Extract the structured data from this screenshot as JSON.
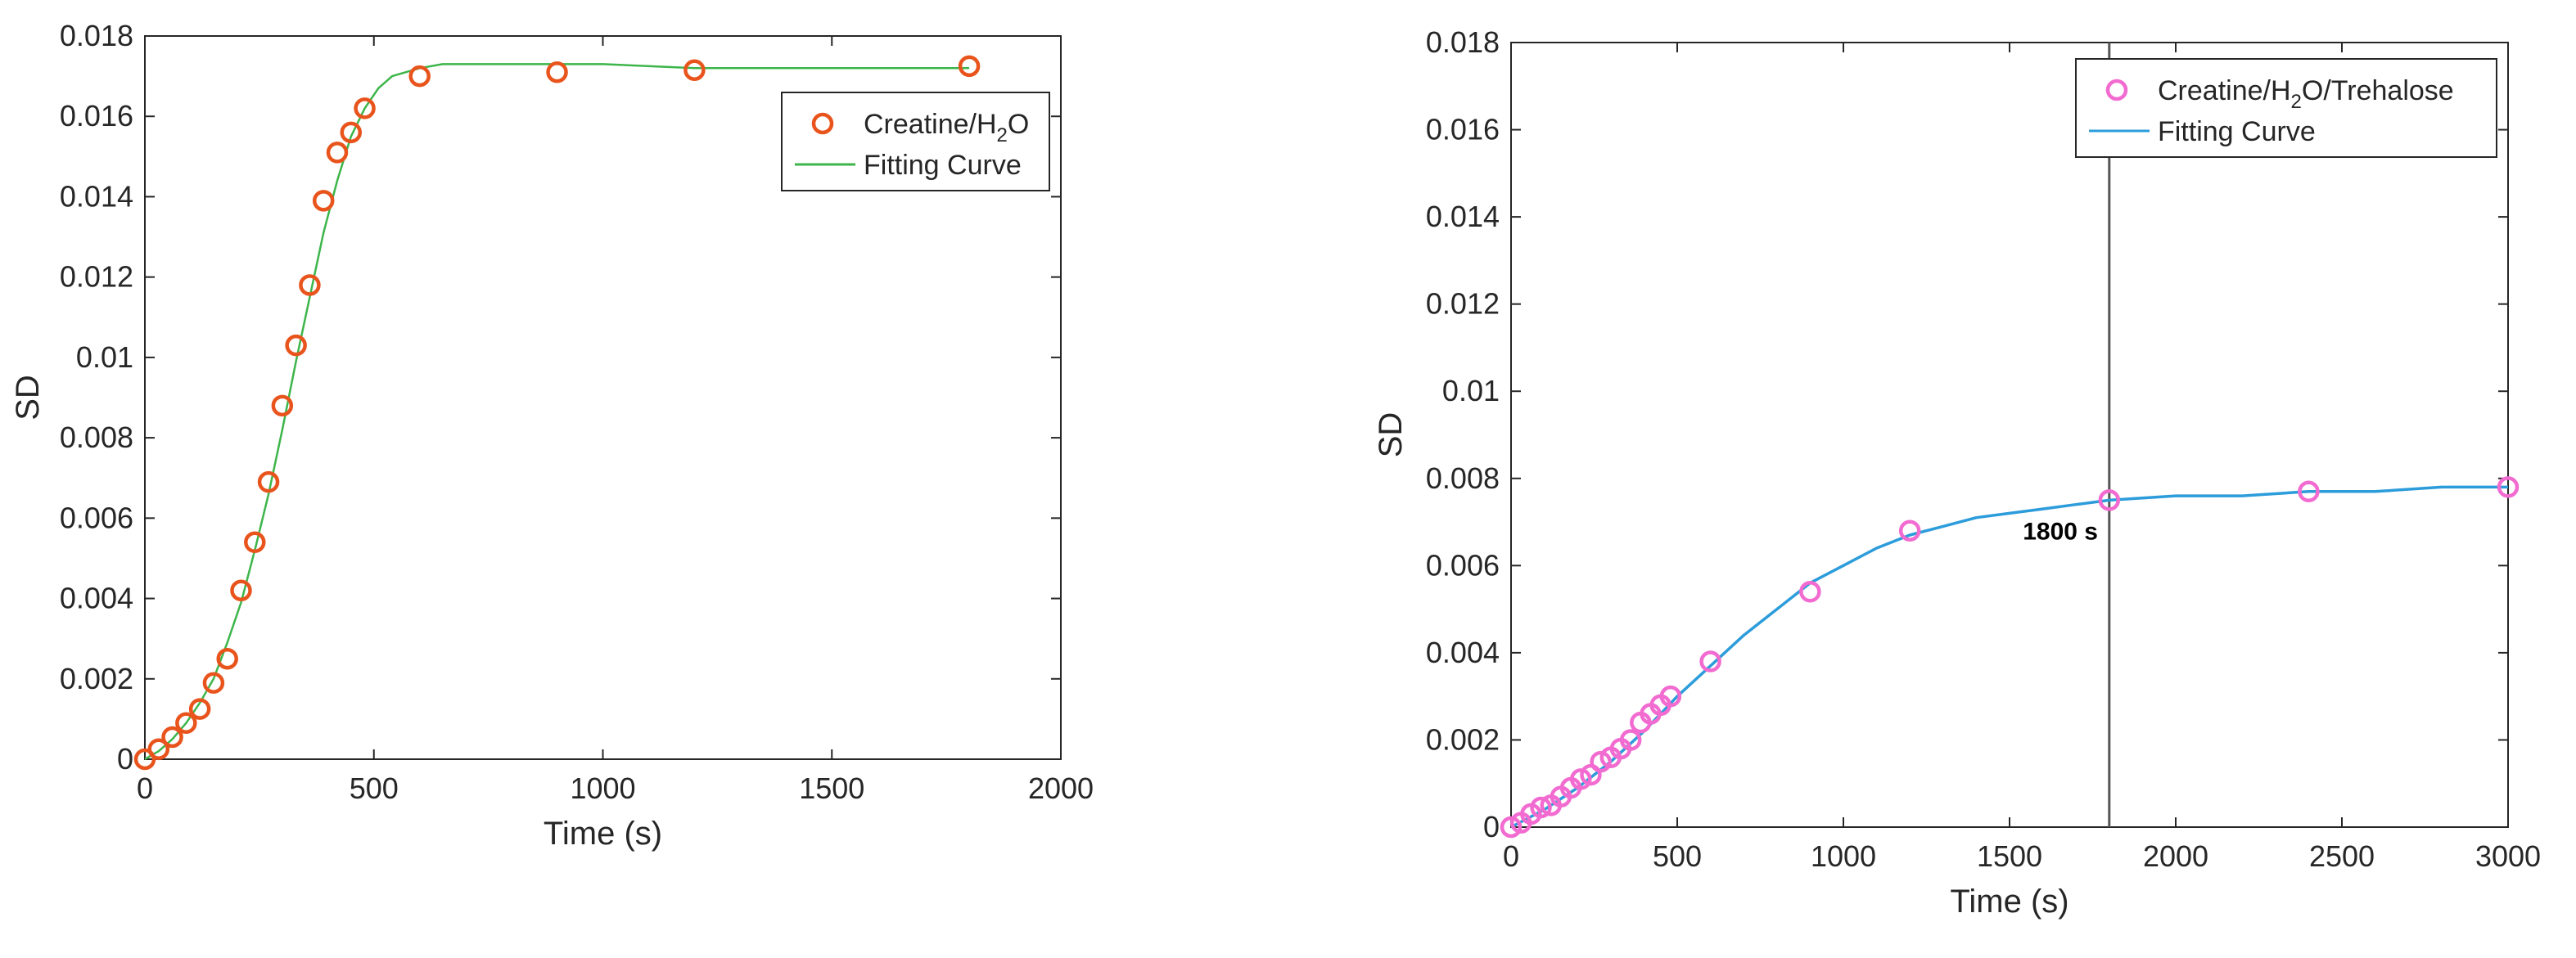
{
  "chart_data": [
    {
      "type": "scatter",
      "xlabel": "Time (s)",
      "ylabel": "SD",
      "xlim": [
        0,
        2000
      ],
      "ylim": [
        0,
        0.018
      ],
      "xticks": [
        "0",
        "500",
        "1000",
        "1500",
        "2000"
      ],
      "yticks": [
        "0",
        "0.002",
        "0.004",
        "0.006",
        "0.008",
        "0.01",
        "0.012",
        "0.014",
        "0.016",
        "0.018"
      ],
      "grid": false,
      "legend_position": "top-right",
      "legend": [
        {
          "text": "Creatine/H",
          "sub": "2",
          "after": "O"
        },
        {
          "text": "Fitting Curve",
          "sub": "",
          "after": ""
        }
      ],
      "series": [
        {
          "kind": "markers",
          "color": "#e8541c",
          "x": [
            0,
            30,
            60,
            90,
            120,
            150,
            180,
            210,
            240,
            270,
            300,
            330,
            360,
            390,
            420,
            450,
            480,
            600,
            900,
            1200,
            1800
          ],
          "y": [
            0,
            0.00025,
            0.00055,
            0.0009,
            0.00125,
            0.0019,
            0.0025,
            0.0042,
            0.0054,
            0.0069,
            0.0088,
            0.0103,
            0.0118,
            0.0139,
            0.0151,
            0.0156,
            0.0162,
            0.017,
            0.0171,
            0.01715,
            0.01725
          ]
        },
        {
          "kind": "line",
          "color": "#3db54a",
          "x": [
            0,
            30,
            60,
            90,
            120,
            150,
            180,
            210,
            240,
            270,
            300,
            330,
            360,
            390,
            420,
            450,
            480,
            510,
            540,
            570,
            600,
            650,
            700,
            800,
            900,
            1000,
            1200,
            1400,
            1600,
            1800
          ],
          "y": [
            0,
            0.0002,
            0.0005,
            0.0009,
            0.0014,
            0.002,
            0.0029,
            0.0039,
            0.0052,
            0.0066,
            0.0082,
            0.0099,
            0.0115,
            0.0131,
            0.0144,
            0.0155,
            0.0162,
            0.0167,
            0.017,
            0.0171,
            0.0172,
            0.0173,
            0.0173,
            0.0173,
            0.0173,
            0.0173,
            0.0172,
            0.0172,
            0.0172,
            0.0172
          ]
        }
      ]
    },
    {
      "type": "scatter",
      "xlabel": "Time (s)",
      "ylabel": "SD",
      "xlim": [
        0,
        3000
      ],
      "ylim": [
        0,
        0.018
      ],
      "xticks": [
        "0",
        "500",
        "1000",
        "1500",
        "2000",
        "2500",
        "3000"
      ],
      "yticks": [
        "0",
        "0.002",
        "0.004",
        "0.006",
        "0.008",
        "0.01",
        "0.012",
        "0.014",
        "0.016",
        "0.018"
      ],
      "grid": false,
      "legend_position": "top-right",
      "legend": [
        {
          "text": "Creatine/H",
          "sub": "2",
          "after": "O/Trehalose"
        },
        {
          "text": "Fitting Curve",
          "sub": "",
          "after": ""
        }
      ],
      "vline": {
        "x": 1800,
        "color": "#555555"
      },
      "annotation": {
        "text": "1800 s",
        "x": 1540,
        "y": 0.0066
      },
      "series": [
        {
          "kind": "markers",
          "color": "#f26bd0",
          "x": [
            0,
            30,
            60,
            90,
            120,
            150,
            180,
            210,
            240,
            270,
            300,
            330,
            360,
            390,
            420,
            450,
            480,
            600,
            900,
            1200,
            1800,
            2400,
            3000
          ],
          "y": [
            0,
            0.0001,
            0.0003,
            0.00045,
            0.0005,
            0.0007,
            0.0009,
            0.0011,
            0.0012,
            0.0015,
            0.0016,
            0.0018,
            0.002,
            0.0024,
            0.0026,
            0.0028,
            0.003,
            0.0038,
            0.0054,
            0.0068,
            0.0075,
            0.0077,
            0.0078
          ]
        },
        {
          "kind": "line",
          "color": "#2c9cdb",
          "x": [
            0,
            100,
            200,
            300,
            400,
            500,
            600,
            700,
            800,
            900,
            1000,
            1100,
            1200,
            1300,
            1400,
            1500,
            1600,
            1700,
            1800,
            2000,
            2200,
            2400,
            2600,
            2800,
            3000
          ],
          "y": [
            0,
            0.0004,
            0.0009,
            0.0015,
            0.0022,
            0.003,
            0.0037,
            0.0044,
            0.005,
            0.0056,
            0.006,
            0.0064,
            0.0067,
            0.0069,
            0.0071,
            0.0072,
            0.0073,
            0.0074,
            0.0075,
            0.0076,
            0.0076,
            0.0077,
            0.0077,
            0.0078,
            0.0078
          ]
        }
      ]
    }
  ]
}
